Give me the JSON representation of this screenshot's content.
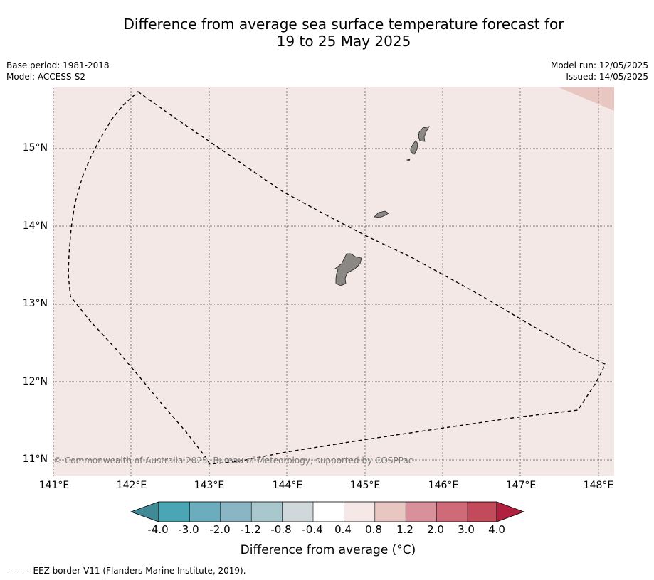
{
  "title_line1": "Difference from average sea surface temperature forecast for",
  "title_line2": "19 to 25 May 2025",
  "base_period": "Base period: 1981-2018",
  "model": "Model: ACCESS-S2",
  "model_run": "Model run: 12/05/2025",
  "issued": "Issued: 14/05/2025",
  "copyright": "© Commonwealth of Australia 2025, Bureau of Meteorology, supported by COSPPac",
  "lat_labels": [
    "15°N",
    "14°N",
    "13°N",
    "12°N",
    "11°N"
  ],
  "lon_labels": [
    "141°E",
    "142°E",
    "143°E",
    "144°E",
    "145°E",
    "146°E",
    "147°E",
    "148°E"
  ],
  "colorbar": {
    "ticks": [
      "-4.0",
      "-3.0",
      "-2.0",
      "-1.2",
      "-0.8",
      "-0.4",
      "0.4",
      "0.8",
      "1.2",
      "2.0",
      "3.0",
      "4.0"
    ],
    "colors": [
      "#3f8a96",
      "#4aa5b5",
      "#6badbd",
      "#8ab5c2",
      "#a9c8cd",
      "#d0d8db",
      "#ffffff",
      "#f5e8e7",
      "#e8c6c2",
      "#d8909a",
      "#cf6a78",
      "#c24a5a",
      "#b22040"
    ],
    "label": "Difference from average (°C)"
  },
  "legend": {
    "eez_line": "-- -- --",
    "eez_text": "EEZ border V11 (Flanders Marine Institute, 2019)."
  }
}
